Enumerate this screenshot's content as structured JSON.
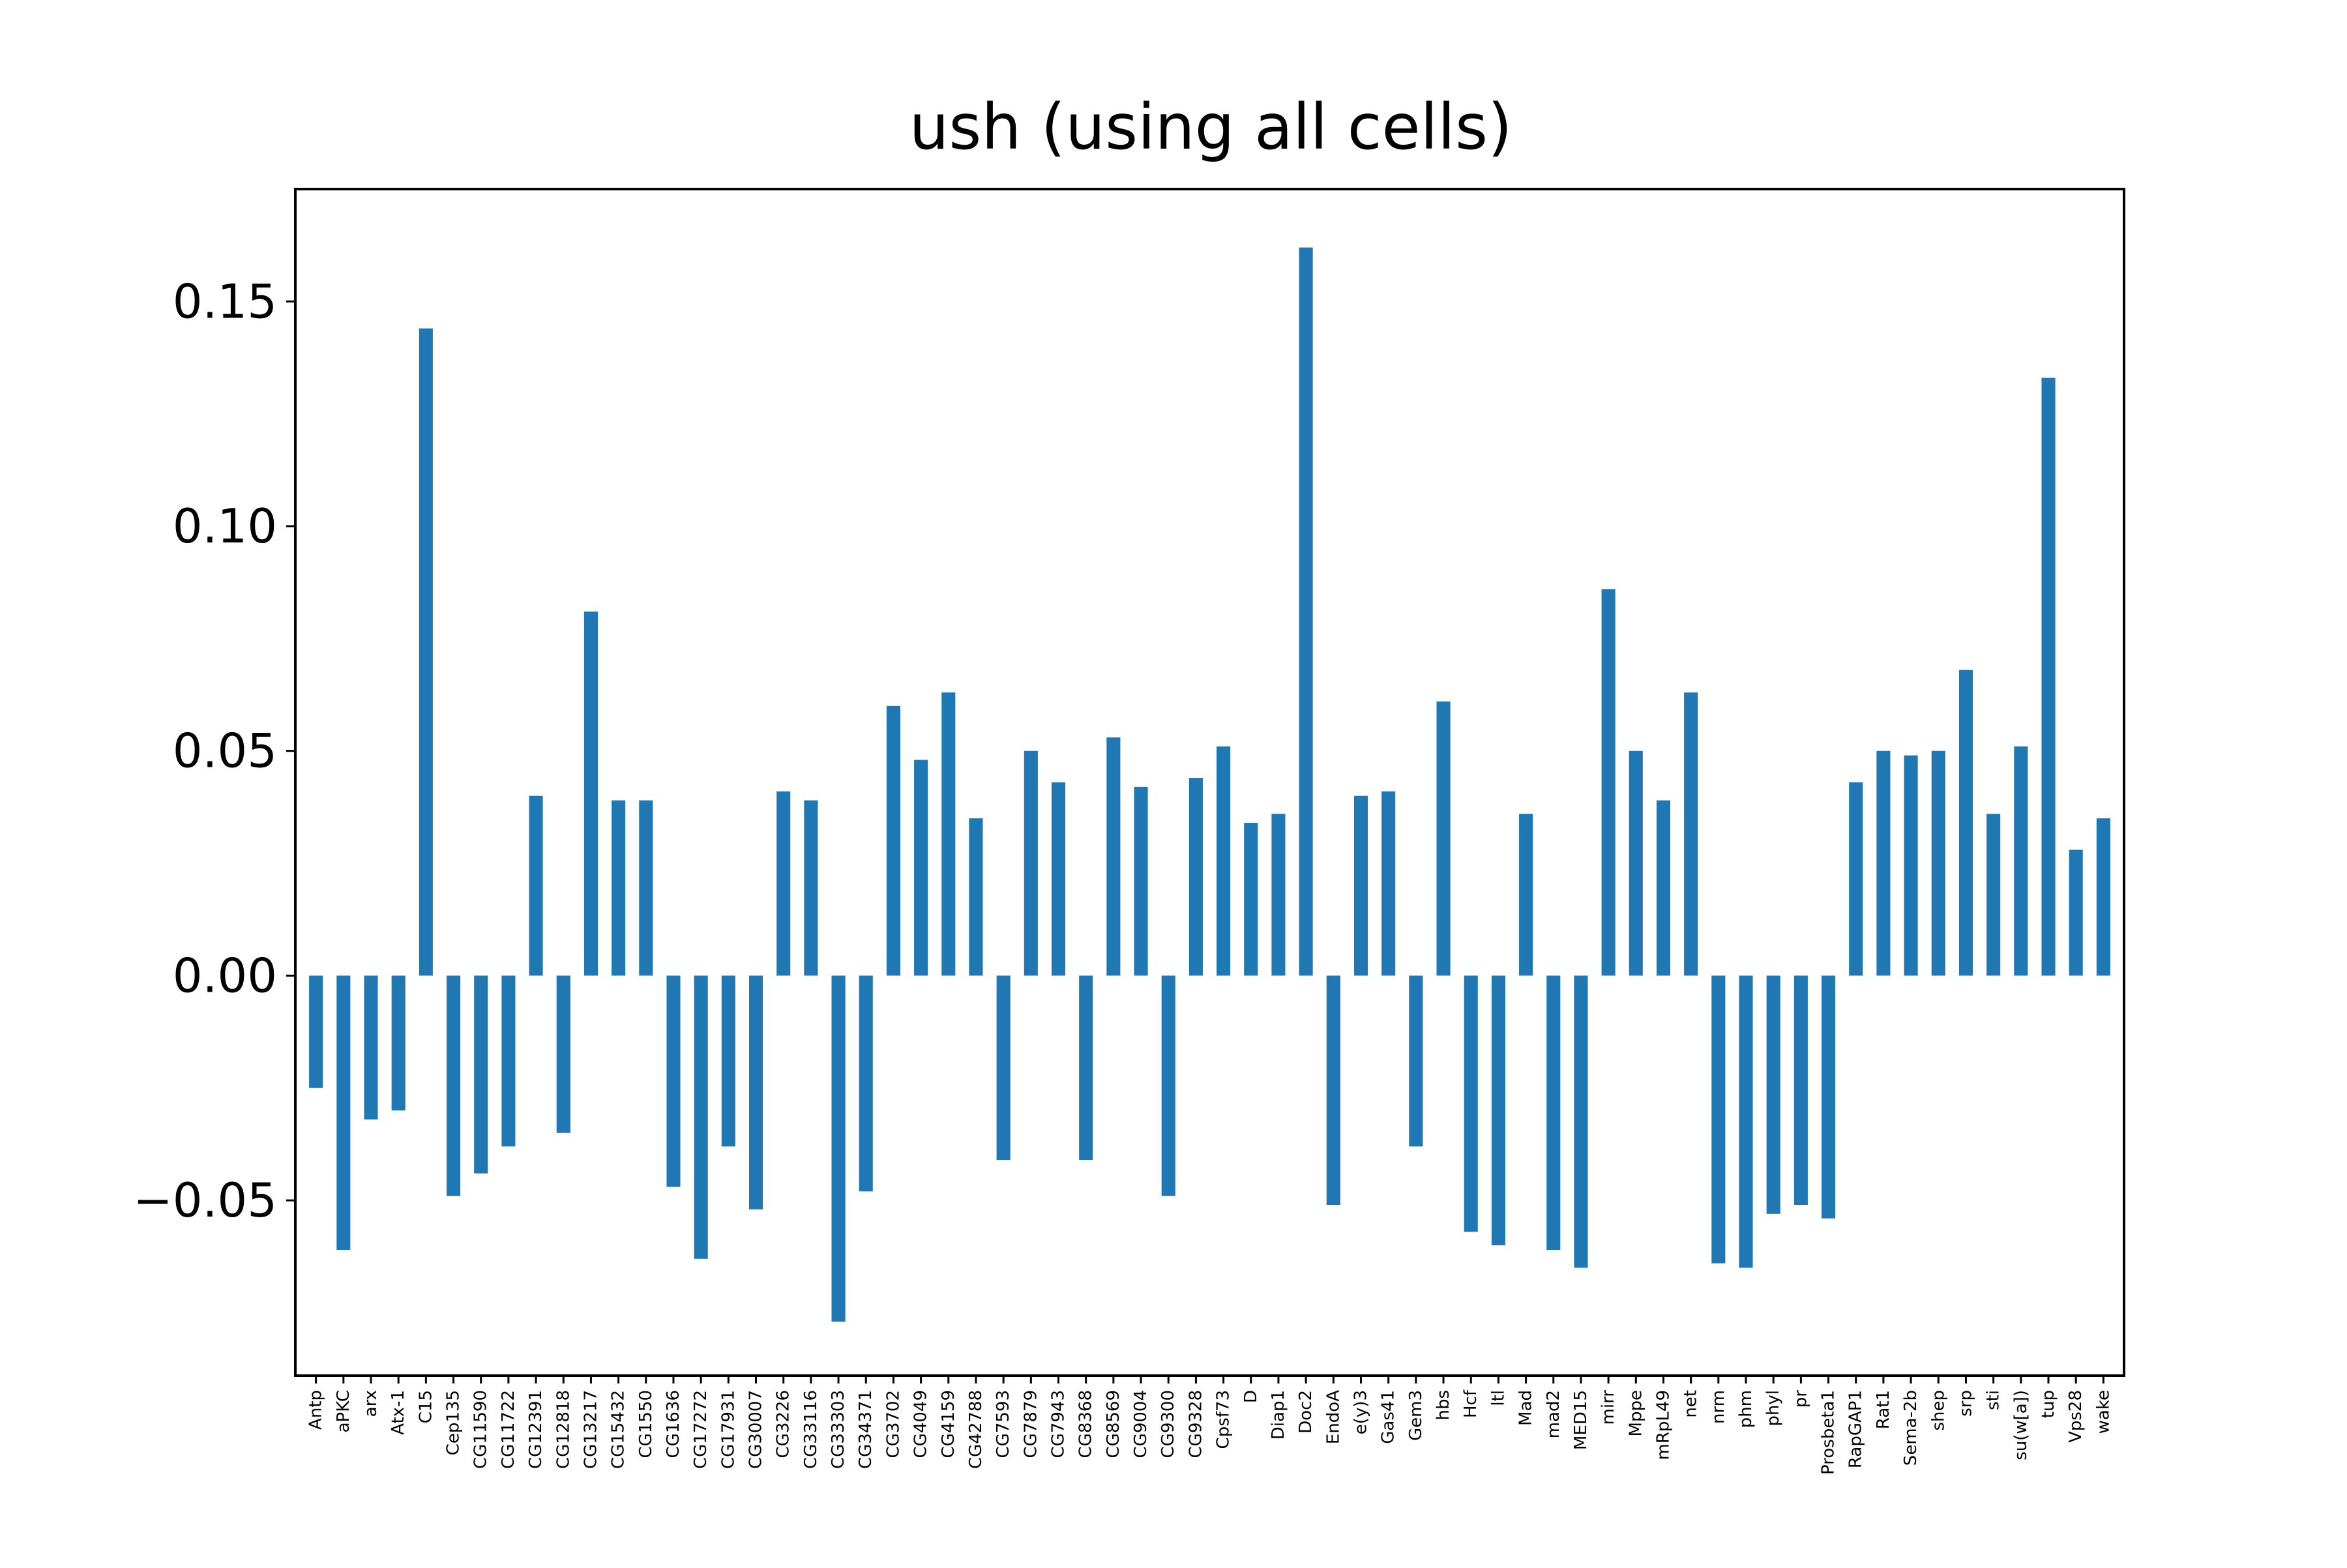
{
  "chart_data": {
    "type": "bar",
    "title": "ush (using all cells)",
    "xlabel": "",
    "ylabel": "",
    "ylim": [
      -0.089,
      0.175
    ],
    "yticks": [
      -0.05,
      0.0,
      0.05,
      0.1,
      0.15
    ],
    "ytick_labels": [
      "−0.05",
      "0.00",
      "0.05",
      "0.10",
      "0.15"
    ],
    "grid": false,
    "bar_color": "#1f77b4",
    "categories": [
      "Antp",
      "aPKC",
      "arx",
      "Atx-1",
      "C15",
      "Cep135",
      "CG11590",
      "CG11722",
      "CG12391",
      "CG12818",
      "CG13217",
      "CG15432",
      "CG1550",
      "CG1636",
      "CG17272",
      "CG17931",
      "CG30007",
      "CG3226",
      "CG33116",
      "CG33303",
      "CG34371",
      "CG3702",
      "CG4049",
      "CG4159",
      "CG42788",
      "CG7593",
      "CG7879",
      "CG7943",
      "CG8368",
      "CG8569",
      "CG9004",
      "CG9300",
      "CG9328",
      "Cpsf73",
      "D",
      "Diap1",
      "Doc2",
      "EndoA",
      "e(y)3",
      "Gas41",
      "Gem3",
      "hbs",
      "Hcf",
      "ltl",
      "Mad",
      "mad2",
      "MED15",
      "mirr",
      "Mppe",
      "mRpL49",
      "net",
      "nrm",
      "phm",
      "phyl",
      "pr",
      "Prosbeta1",
      "RapGAP1",
      "Rat1",
      "Sema-2b",
      "shep",
      "srp",
      "sti",
      "su(w[a])",
      "tup",
      "Vps28",
      "wake"
    ],
    "values": [
      -0.025,
      -0.061,
      -0.032,
      -0.03,
      0.144,
      -0.049,
      -0.044,
      -0.038,
      0.04,
      -0.035,
      0.081,
      0.039,
      0.039,
      -0.047,
      -0.063,
      -0.038,
      -0.052,
      0.041,
      0.039,
      -0.077,
      -0.048,
      0.06,
      0.048,
      0.063,
      0.035,
      -0.041,
      0.05,
      0.043,
      -0.041,
      0.053,
      0.042,
      -0.049,
      0.044,
      0.051,
      0.034,
      0.036,
      0.162,
      -0.051,
      0.04,
      0.041,
      -0.038,
      0.061,
      -0.057,
      -0.06,
      0.036,
      -0.061,
      -0.065,
      0.086,
      0.05,
      0.039,
      0.063,
      -0.064,
      -0.065,
      -0.053,
      -0.051,
      -0.054,
      0.043,
      0.05,
      0.049,
      0.05,
      0.068,
      0.036,
      0.051,
      0.133,
      0.028,
      0.035
    ]
  }
}
